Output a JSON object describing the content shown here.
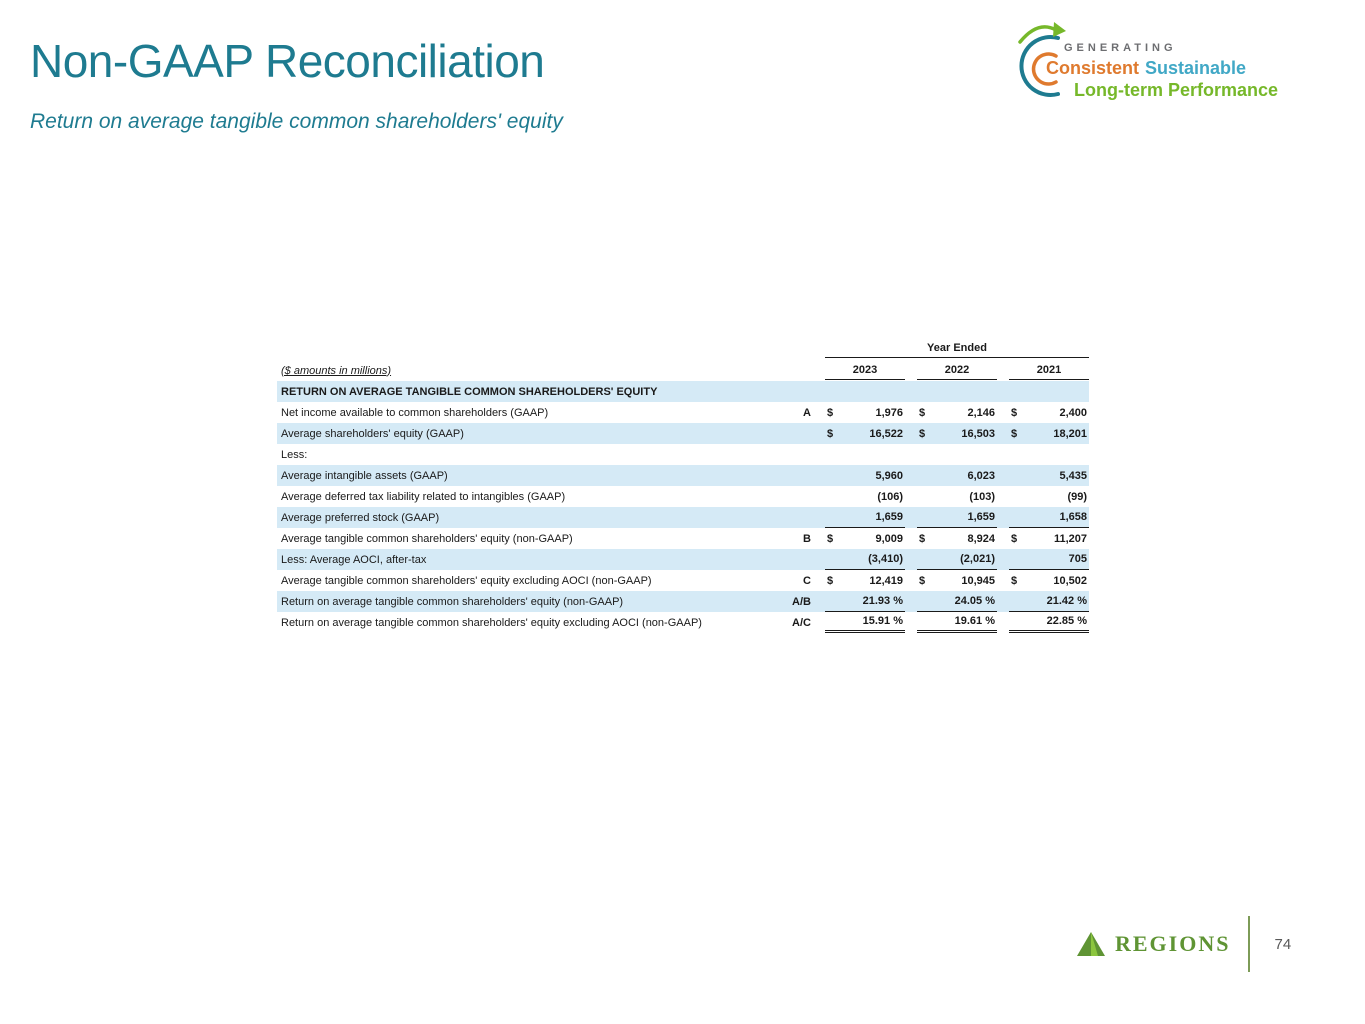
{
  "slide": {
    "title": "Non-GAAP Reconciliation",
    "subtitle": "Return on average tangible common shareholders' equity"
  },
  "brand_tagline": {
    "line1": "GENERATING",
    "consistent": "Consistent",
    "sustainable": "Sustainable",
    "line3": "Long-term Performance"
  },
  "table": {
    "units_note": "($ amounts in millions)",
    "year_ended": "Year Ended",
    "years": [
      "2023",
      "2022",
      "2021"
    ],
    "section_title": "RETURN ON AVERAGE TANGIBLE COMMON SHAREHOLDERS' EQUITY",
    "rows": [
      {
        "label": "Net income available to common shareholders (GAAP)",
        "ref": "A",
        "cur": "$",
        "values": [
          "1,976",
          "2,146",
          "2,400"
        ],
        "shaded": false,
        "border": "none"
      },
      {
        "label": "Average shareholders' equity (GAAP)",
        "ref": "",
        "cur": "$",
        "values": [
          "16,522",
          "16,503",
          "18,201"
        ],
        "shaded": true,
        "border": "none"
      },
      {
        "label": "Less:",
        "ref": "",
        "cur": "",
        "values": null,
        "shaded": false,
        "border": "none"
      },
      {
        "label": "Average intangible assets (GAAP)",
        "ref": "",
        "cur": "",
        "values": [
          "5,960",
          "6,023",
          "5,435"
        ],
        "shaded": true,
        "border": "none"
      },
      {
        "label": "Average deferred tax liability related to intangibles (GAAP)",
        "ref": "",
        "cur": "",
        "values": [
          "(106)",
          "(103)",
          "(99)"
        ],
        "shaded": false,
        "border": "none"
      },
      {
        "label": "Average preferred stock (GAAP)",
        "ref": "",
        "cur": "",
        "values": [
          "1,659",
          "1,659",
          "1,658"
        ],
        "shaded": true,
        "border": "single"
      },
      {
        "label": "Average tangible common shareholders' equity (non-GAAP)",
        "ref": "B",
        "cur": "$",
        "values": [
          "9,009",
          "8,924",
          "11,207"
        ],
        "shaded": false,
        "border": "none"
      },
      {
        "label": "Less: Average AOCI, after-tax",
        "ref": "",
        "cur": "",
        "values": [
          "(3,410)",
          "(2,021)",
          "705"
        ],
        "shaded": true,
        "border": "single"
      },
      {
        "label": "Average tangible common shareholders' equity excluding AOCI (non-GAAP)",
        "ref": "C",
        "cur": "$",
        "values": [
          "12,419",
          "10,945",
          "10,502"
        ],
        "shaded": false,
        "border": "none"
      },
      {
        "label": "Return on average tangible common shareholders' equity (non-GAAP)",
        "ref": "A/B",
        "cur": "",
        "values": [
          "21.93 %",
          "24.05 %",
          "21.42 %"
        ],
        "shaded": true,
        "border": "single"
      },
      {
        "label": "Return on average tangible common shareholders' equity excluding AOCI (non-GAAP)",
        "ref": "A/C",
        "cur": "",
        "values": [
          "15.91 %",
          "19.61 %",
          "22.85 %"
        ],
        "shaded": false,
        "border": "double"
      }
    ]
  },
  "footer": {
    "brand": "REGIONS",
    "page_number": "74"
  },
  "colors": {
    "title_teal": "#1e7b90",
    "shade_blue": "#d5eaf6",
    "orange": "#df7a2e",
    "light_blue": "#41a8c6",
    "green": "#76b82a",
    "regions_green": "#5f9434",
    "gray": "#6d6e71"
  }
}
